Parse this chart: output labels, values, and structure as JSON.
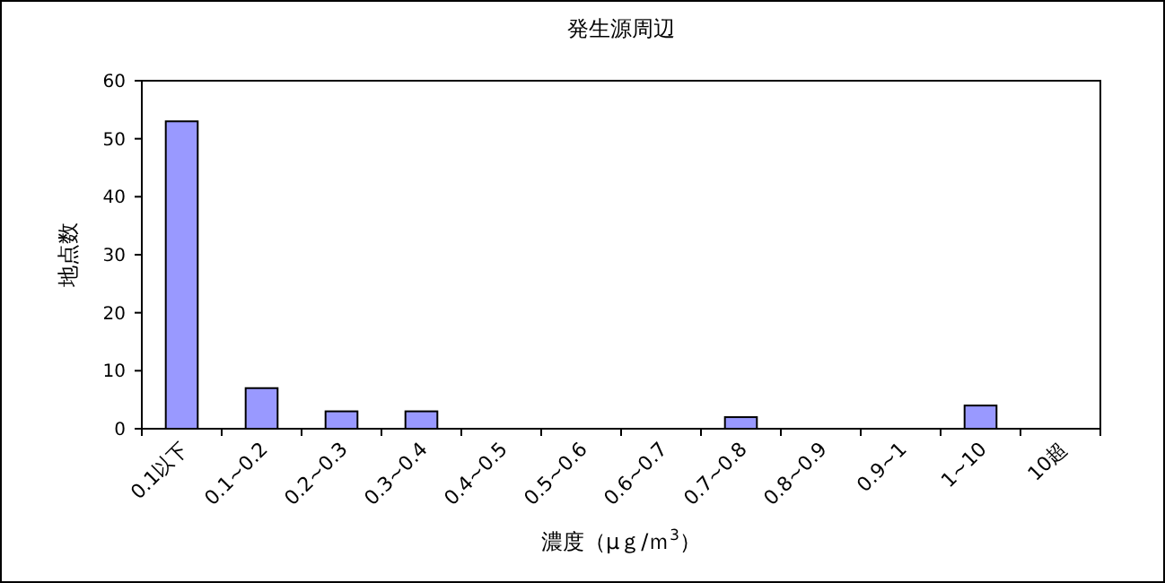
{
  "chart_data": {
    "type": "bar",
    "title": "発生源周辺",
    "xlabel": "濃度（μｇ/ｍ$^{3}$）",
    "ylabel": "地点数",
    "categories": [
      "0.1以下",
      "0.1~0.2",
      "0.2~0.3",
      "0.3~0.4",
      "0.4~0.5",
      "0.5~0.6",
      "0.6~0.7",
      "0.7~0.8",
      "0.8~0.9",
      "0.9~1",
      "1~10",
      "10超"
    ],
    "values": [
      53,
      7,
      3,
      3,
      0,
      0,
      0,
      2,
      0,
      0,
      4,
      0
    ],
    "color": "#9999ff",
    "ylim": [
      0,
      60
    ],
    "yticks": [
      0,
      10,
      20,
      30,
      40,
      50,
      60
    ],
    "grid": false
  }
}
